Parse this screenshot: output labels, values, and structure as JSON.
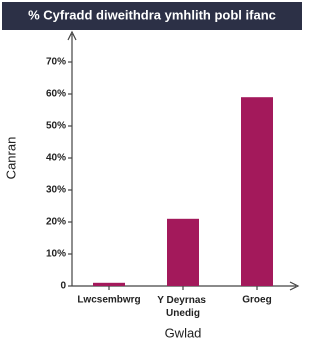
{
  "chart_data": {
    "type": "bar",
    "title": "% Cyfradd diweithdra ymhlith pobl ifanc",
    "y_label": "Canran",
    "x_label": "Gwlad",
    "categories": [
      "Lwcsembwrg",
      "Y Deyrnas Unedig",
      "Groeg"
    ],
    "values": [
      1,
      21,
      59
    ],
    "color": "#a3195b",
    "ylim": [
      0,
      80
    ],
    "yticks": [
      {
        "value": 0,
        "label": "0"
      },
      {
        "value": 10,
        "label": "10%"
      },
      {
        "value": 20,
        "label": "20%"
      },
      {
        "value": 30,
        "label": "30%"
      },
      {
        "value": 40,
        "label": "40%"
      },
      {
        "value": 50,
        "label": "50%"
      },
      {
        "value": 60,
        "label": "60%"
      },
      {
        "value": 70,
        "label": "70%"
      }
    ],
    "grid": false
  }
}
